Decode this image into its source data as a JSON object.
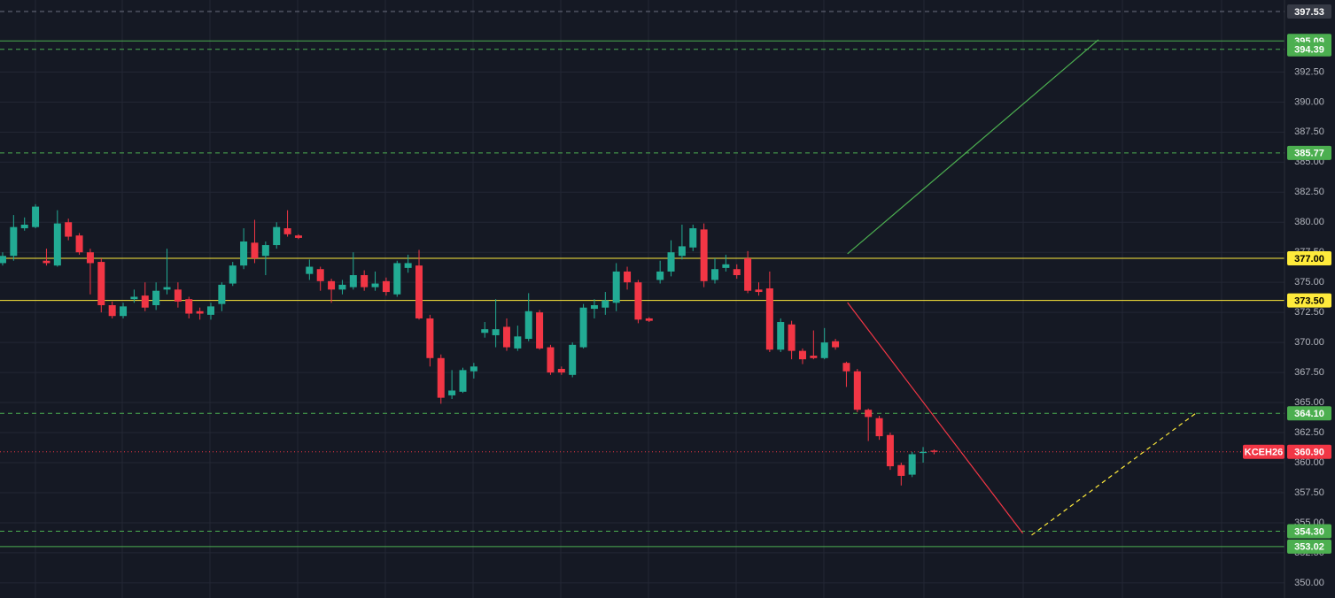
{
  "chart_data": {
    "type": "candlestick",
    "symbol": "KCEH26",
    "up_color": "#22ab94",
    "down_color": "#f23645",
    "xlim": [
      -0.24,
      116.98
    ],
    "ylim": [
      348.74,
      398.49
    ],
    "grid": true,
    "yticks": [
      {
        "value": 350,
        "label": "350.00"
      },
      {
        "value": 352.5,
        "label": "352.50"
      },
      {
        "value": 355,
        "label": "355.00"
      },
      {
        "value": 357.5,
        "label": "357.50"
      },
      {
        "value": 360,
        "label": "360.00"
      },
      {
        "value": 362.5,
        "label": "362.50"
      },
      {
        "value": 365,
        "label": "365.00"
      },
      {
        "value": 367.5,
        "label": "367.50"
      },
      {
        "value": 370,
        "label": "370.00"
      },
      {
        "value": 372.5,
        "label": "372.50"
      },
      {
        "value": 375,
        "label": "375.00"
      },
      {
        "value": 377.5,
        "label": "377.50"
      },
      {
        "value": 380,
        "label": "380.00"
      },
      {
        "value": 382.5,
        "label": "382.50"
      },
      {
        "value": 385,
        "label": "385.00"
      },
      {
        "value": 387.5,
        "label": "387.50"
      },
      {
        "value": 390,
        "label": "390.00"
      },
      {
        "value": 392.5,
        "label": "392.50"
      }
    ],
    "ohlc": [
      [
        376.6,
        377.5,
        376.4,
        377.2
      ],
      [
        377.2,
        380.6,
        376.8,
        379.6
      ],
      [
        379.5,
        380.4,
        379.3,
        379.8
      ],
      [
        379.6,
        381.5,
        379.5,
        381.3
      ],
      [
        376.8,
        377.8,
        376.4,
        376.6
      ],
      [
        376.4,
        381.0,
        376.3,
        379.9
      ],
      [
        380.0,
        380.3,
        378.5,
        378.8
      ],
      [
        378.9,
        379.1,
        377.3,
        377.5
      ],
      [
        377.5,
        377.8,
        374.0,
        376.6
      ],
      [
        376.7,
        377.0,
        372.5,
        373.1
      ],
      [
        373.1,
        373.4,
        372.0,
        372.2
      ],
      [
        372.2,
        373.3,
        372.0,
        373.0
      ],
      [
        373.6,
        374.4,
        373.3,
        373.8
      ],
      [
        373.9,
        375.0,
        372.6,
        372.9
      ],
      [
        373.1,
        375.0,
        372.7,
        374.3
      ],
      [
        374.4,
        377.8,
        374.0,
        374.6
      ],
      [
        374.4,
        375.0,
        372.9,
        373.4
      ],
      [
        373.6,
        373.8,
        372.0,
        372.4
      ],
      [
        372.6,
        372.9,
        371.9,
        372.4
      ],
      [
        372.3,
        373.3,
        371.9,
        373.0
      ],
      [
        373.2,
        375.0,
        372.6,
        374.8
      ],
      [
        374.9,
        376.7,
        374.7,
        376.4
      ],
      [
        376.4,
        379.5,
        376.1,
        378.4
      ],
      [
        378.3,
        380.2,
        376.6,
        377.0
      ],
      [
        377.2,
        378.4,
        375.6,
        378.1
      ],
      [
        378.1,
        380.0,
        377.8,
        379.6
      ],
      [
        379.5,
        381.0,
        378.8,
        379.0
      ],
      [
        378.9,
        379.0,
        378.6,
        378.7
      ],
      [
        375.7,
        376.9,
        375.2,
        376.3
      ],
      [
        376.1,
        376.3,
        374.3,
        375.1
      ],
      [
        375.1,
        375.3,
        373.3,
        374.4
      ],
      [
        374.4,
        375.2,
        374.0,
        374.8
      ],
      [
        374.6,
        377.5,
        374.4,
        375.6
      ],
      [
        375.6,
        376.0,
        374.3,
        374.6
      ],
      [
        374.6,
        375.9,
        374.3,
        374.9
      ],
      [
        375.1,
        375.4,
        373.9,
        374.2
      ],
      [
        374.0,
        376.8,
        373.8,
        376.6
      ],
      [
        376.2,
        377.3,
        375.8,
        376.6
      ],
      [
        376.4,
        377.7,
        371.9,
        372.0
      ],
      [
        372.0,
        372.3,
        368.0,
        368.7
      ],
      [
        368.7,
        369.0,
        364.9,
        365.4
      ],
      [
        365.6,
        367.7,
        365.3,
        366.0
      ],
      [
        365.9,
        367.9,
        365.8,
        367.7
      ],
      [
        367.6,
        368.3,
        367.0,
        368.0
      ],
      [
        370.8,
        371.7,
        370.4,
        371.1
      ],
      [
        370.6,
        373.6,
        369.6,
        371.1
      ],
      [
        371.3,
        372.0,
        369.3,
        369.6
      ],
      [
        369.5,
        371.4,
        369.3,
        370.5
      ],
      [
        370.3,
        374.1,
        370.1,
        372.6
      ],
      [
        372.5,
        372.7,
        369.4,
        369.5
      ],
      [
        369.6,
        369.8,
        367.3,
        367.5
      ],
      [
        367.8,
        368.0,
        367.3,
        367.5
      ],
      [
        367.3,
        370.0,
        367.1,
        369.8
      ],
      [
        369.6,
        373.2,
        369.5,
        372.9
      ],
      [
        372.8,
        373.6,
        372.0,
        373.1
      ],
      [
        372.9,
        374.2,
        372.3,
        373.5
      ],
      [
        373.3,
        376.6,
        372.6,
        375.9
      ],
      [
        375.9,
        376.3,
        374.4,
        375.0
      ],
      [
        375.0,
        375.2,
        371.6,
        371.9
      ],
      [
        372.0,
        372.1,
        371.7,
        371.8
      ],
      [
        375.2,
        376.8,
        374.9,
        375.9
      ],
      [
        375.9,
        378.5,
        375.5,
        377.5
      ],
      [
        377.2,
        379.8,
        376.9,
        378.0
      ],
      [
        377.9,
        379.8,
        377.6,
        379.5
      ],
      [
        379.4,
        379.9,
        374.6,
        375.1
      ],
      [
        375.2,
        377.0,
        374.9,
        376.1
      ],
      [
        376.2,
        377.3,
        375.9,
        376.5
      ],
      [
        376.1,
        376.5,
        375.3,
        375.6
      ],
      [
        377.0,
        377.6,
        374.1,
        374.3
      ],
      [
        374.4,
        375.0,
        373.9,
        374.2
      ],
      [
        374.5,
        375.9,
        369.2,
        369.4
      ],
      [
        369.4,
        372.0,
        369.2,
        371.7
      ],
      [
        371.5,
        371.8,
        368.6,
        369.3
      ],
      [
        369.3,
        369.5,
        368.2,
        368.6
      ],
      [
        368.9,
        371.0,
        368.6,
        368.7
      ],
      [
        368.7,
        371.2,
        368.6,
        370.0
      ],
      [
        370.1,
        370.3,
        369.4,
        369.6
      ],
      [
        368.3,
        368.4,
        366.3,
        367.6
      ],
      [
        367.6,
        367.8,
        364.2,
        364.4
      ],
      [
        364.4,
        364.5,
        361.8,
        363.8
      ],
      [
        363.7,
        363.9,
        361.9,
        362.2
      ],
      [
        362.3,
        362.5,
        359.4,
        359.7
      ],
      [
        359.8,
        360.0,
        358.1,
        358.9
      ],
      [
        359.0,
        360.9,
        358.8,
        360.7
      ],
      [
        360.8,
        361.3,
        360.0,
        360.9
      ],
      [
        361.0,
        361.1,
        360.7,
        360.9
      ]
    ],
    "price_lines": [
      {
        "value": 397.53,
        "color": "#6b7080",
        "style": "dashed",
        "tag_color": "#363a45",
        "text_color": "#ffffff"
      },
      {
        "value": 395.09,
        "color": "#4caf50",
        "style": "solid",
        "tag_color": "#4caf50",
        "text_color": "#ffffff"
      },
      {
        "value": 394.39,
        "color": "#4caf50",
        "style": "dashed",
        "tag_color": "#4caf50",
        "text_color": "#ffffff"
      },
      {
        "value": 385.77,
        "color": "#4caf50",
        "style": "dashed",
        "tag_color": "#4caf50",
        "text_color": "#ffffff"
      },
      {
        "value": 377,
        "label": "377.00",
        "color": "#ffeb3b",
        "style": "solid",
        "tag_color": "#ffeb3b",
        "text_color": "#000000"
      },
      {
        "value": 373.5,
        "label": "373.50",
        "color": "#ffeb3b",
        "style": "solid",
        "tag_color": "#ffeb3b",
        "text_color": "#000000"
      },
      {
        "value": 364.1,
        "label": "364.10",
        "color": "#4caf50",
        "style": "dashed",
        "tag_color": "#4caf50",
        "text_color": "#ffffff"
      },
      {
        "value": 354.3,
        "label": "354.30",
        "color": "#4caf50",
        "style": "dashed",
        "tag_color": "#4caf50",
        "text_color": "#ffffff"
      },
      {
        "value": 353.02,
        "color": "#4caf50",
        "style": "solid",
        "tag_color": "#4caf50",
        "text_color": "#ffffff"
      }
    ],
    "last_price": {
      "value": 360.9,
      "label": "360.90",
      "color": "#f23645",
      "style": "dotted",
      "tag_color": "#f23645",
      "text_color": "#ffffff"
    },
    "drawings": [
      {
        "from": [
          77.1,
          377.37
        ],
        "to": [
          100,
          395.18
        ],
        "color": "#4caf50",
        "style": "solid"
      },
      {
        "from": [
          77.1,
          373.32
        ],
        "to": [
          93.1,
          354.12
        ],
        "color": "#f23645",
        "style": "solid"
      },
      {
        "from": [
          93.9,
          353.97
        ],
        "to": [
          108.9,
          364.12
        ],
        "color": "#ffeb3b",
        "style": "dashed"
      }
    ]
  }
}
